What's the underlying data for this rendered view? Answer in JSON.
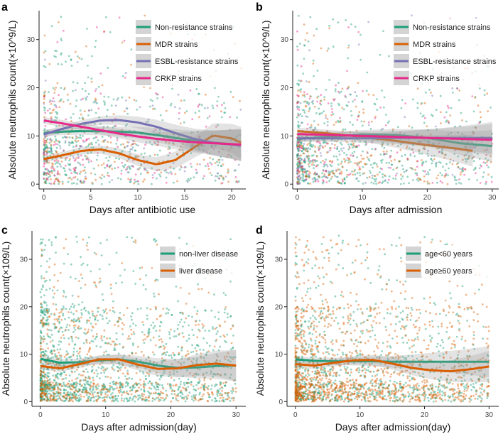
{
  "chart_data": [
    {
      "id": "a",
      "type": "scatter",
      "panel_label": "a",
      "title": "",
      "xlabel": "Days after antibiotic use",
      "ylabel": "Absolute neutrophils count(×10^9/L)",
      "xlim": [
        -0.5,
        21.5
      ],
      "ylim": [
        -1,
        36
      ],
      "xticks": [
        0,
        5,
        10,
        15,
        20
      ],
      "xtick_labels": [
        "0",
        "5",
        "10",
        "15",
        "20"
      ],
      "yticks": [
        0,
        10,
        20,
        30
      ],
      "ytick_labels": [
        "0",
        "10",
        "20",
        "30"
      ],
      "grid": false,
      "legend_position": "top-right",
      "series": [
        {
          "name": "Non-resistance strains",
          "color": "#1b9e77",
          "n_points": 520,
          "trend_x": [
            0,
            2,
            4,
            6,
            8,
            10,
            12,
            14,
            16,
            18,
            20,
            21
          ],
          "trend_y": [
            10.6,
            10.9,
            11.0,
            11.0,
            10.9,
            10.7,
            10.2,
            9.6,
            9.0,
            8.6,
            8.3,
            8.1
          ]
        },
        {
          "name": "MDR strains",
          "color": "#d95f02",
          "n_points": 230,
          "trend_x": [
            0,
            2,
            4,
            6,
            8,
            10,
            12,
            14,
            16,
            18,
            20,
            21
          ],
          "trend_y": [
            5.2,
            6.0,
            6.9,
            7.2,
            6.4,
            5.0,
            4.1,
            5.0,
            7.6,
            10.1,
            9.5,
            8.6
          ]
        },
        {
          "name": "ESBL-resistance strains",
          "color": "#7570b3",
          "n_points": 110,
          "trend_x": [
            0,
            2,
            4,
            6,
            8,
            10,
            12,
            14,
            16,
            18,
            20,
            21
          ],
          "trend_y": [
            10.3,
            11.5,
            12.5,
            13.2,
            13.3,
            12.8,
            11.9,
            10.6,
            9.4,
            8.6,
            8.2,
            8.0
          ]
        },
        {
          "name": "CRKP strains",
          "color": "#e7298a",
          "n_points": 170,
          "trend_x": [
            0,
            2,
            4,
            6,
            8,
            10,
            12,
            14,
            16,
            18,
            20,
            21
          ],
          "trend_y": [
            13.2,
            12.6,
            11.9,
            11.2,
            10.5,
            9.9,
            9.4,
            9.0,
            8.7,
            8.5,
            8.3,
            8.2
          ]
        }
      ]
    },
    {
      "id": "b",
      "type": "scatter",
      "panel_label": "b",
      "title": "",
      "xlabel": "Days after admission",
      "ylabel": "Absolute neutrophils count(×10^9/L)",
      "xlim": [
        -0.7,
        31
      ],
      "ylim": [
        -1,
        36
      ],
      "xticks": [
        0,
        10,
        20,
        30
      ],
      "xtick_labels": [
        "0",
        "10",
        "20",
        "30"
      ],
      "yticks": [
        0,
        10,
        20,
        30
      ],
      "ytick_labels": [
        "0",
        "10",
        "20",
        "30"
      ],
      "grid": false,
      "legend_position": "top-right",
      "series": [
        {
          "name": "Non-resistance strains",
          "color": "#1b9e77",
          "n_points": 700,
          "trend_x": [
            0,
            5,
            10,
            15,
            20,
            25,
            30
          ],
          "trend_y": [
            9.4,
            9.8,
            10.3,
            10.2,
            9.6,
            8.5,
            7.9
          ]
        },
        {
          "name": "MDR strains",
          "color": "#d95f02",
          "n_points": 280,
          "trend_x": [
            0,
            5,
            10,
            15,
            20,
            25,
            27
          ],
          "trend_y": [
            11.0,
            10.5,
            9.8,
            9.0,
            8.1,
            7.3,
            6.9
          ]
        },
        {
          "name": "ESBL-resistance strains",
          "color": "#7570b3",
          "n_points": 110,
          "trend_x": [
            0,
            5,
            10,
            15,
            20,
            25,
            30
          ],
          "trend_y": [
            9.5,
            9.5,
            9.5,
            9.6,
            9.6,
            9.6,
            9.6
          ]
        },
        {
          "name": "CRKP strains",
          "color": "#e7298a",
          "n_points": 160,
          "trend_x": [
            0,
            5,
            10,
            15,
            20,
            25,
            30
          ],
          "trend_y": [
            10.4,
            10.2,
            10.0,
            9.8,
            9.6,
            9.4,
            9.2
          ]
        }
      ]
    },
    {
      "id": "c",
      "type": "scatter",
      "panel_label": "c",
      "title": "",
      "xlabel": "Days after admission(day)",
      "ylabel": "Absolute neutrophils count(×109/L)",
      "xlim": [
        -1.3,
        31.5
      ],
      "ylim": [
        -1,
        36
      ],
      "xticks": [
        0,
        10,
        20,
        30
      ],
      "xtick_labels": [
        "0",
        "10",
        "20",
        "30"
      ],
      "yticks": [
        0,
        10,
        20,
        30
      ],
      "ytick_labels": [
        "0",
        "10",
        "20",
        "30"
      ],
      "grid": false,
      "legend_position": "top-right",
      "series": [
        {
          "name": "non-liver disease",
          "color": "#1b9e77",
          "n_points": 1400,
          "trend_x": [
            0,
            3,
            6,
            9,
            12,
            15,
            18,
            21,
            24,
            27,
            30
          ],
          "trend_y": [
            9.0,
            8.2,
            8.3,
            8.7,
            8.9,
            8.4,
            7.6,
            7.1,
            7.2,
            7.5,
            7.6
          ]
        },
        {
          "name": "liver disease",
          "color": "#d95f02",
          "n_points": 700,
          "trend_x": [
            0,
            3,
            6,
            9,
            12,
            15,
            18,
            21,
            24,
            27,
            30
          ],
          "trend_y": [
            7.5,
            7.0,
            7.9,
            8.9,
            8.9,
            7.8,
            6.9,
            7.0,
            7.7,
            8.0,
            7.6
          ]
        }
      ]
    },
    {
      "id": "d",
      "type": "scatter",
      "panel_label": "d",
      "title": "",
      "xlabel": "Days after admission(day)",
      "ylabel": "Absolute neutrophils count(×109/L)",
      "xlim": [
        -1.3,
        31.5
      ],
      "ylim": [
        -1,
        36
      ],
      "xticks": [
        0,
        10,
        20,
        30
      ],
      "xtick_labels": [
        "0",
        "10",
        "20",
        "30"
      ],
      "yticks": [
        0,
        10,
        20,
        30
      ],
      "ytick_labels": [
        "0",
        "10",
        "20",
        "30"
      ],
      "grid": false,
      "legend_position": "top-right",
      "series": [
        {
          "name": "age<60 years",
          "color": "#1b9e77",
          "n_points": 900,
          "trend_x": [
            0,
            3,
            6,
            9,
            12,
            15,
            18,
            21,
            24,
            27,
            30
          ],
          "trend_y": [
            8.9,
            8.6,
            8.5,
            8.5,
            8.5,
            8.4,
            8.4,
            8.4,
            8.4,
            8.4,
            8.4
          ]
        },
        {
          "name": "age≥60 years",
          "color": "#d95f02",
          "n_points": 1300,
          "trend_x": [
            0,
            3,
            6,
            9,
            12,
            15,
            18,
            21,
            24,
            27,
            30
          ],
          "trend_y": [
            7.9,
            7.6,
            8.2,
            8.7,
            8.8,
            8.0,
            7.1,
            6.6,
            6.4,
            6.8,
            7.4
          ]
        }
      ]
    }
  ]
}
